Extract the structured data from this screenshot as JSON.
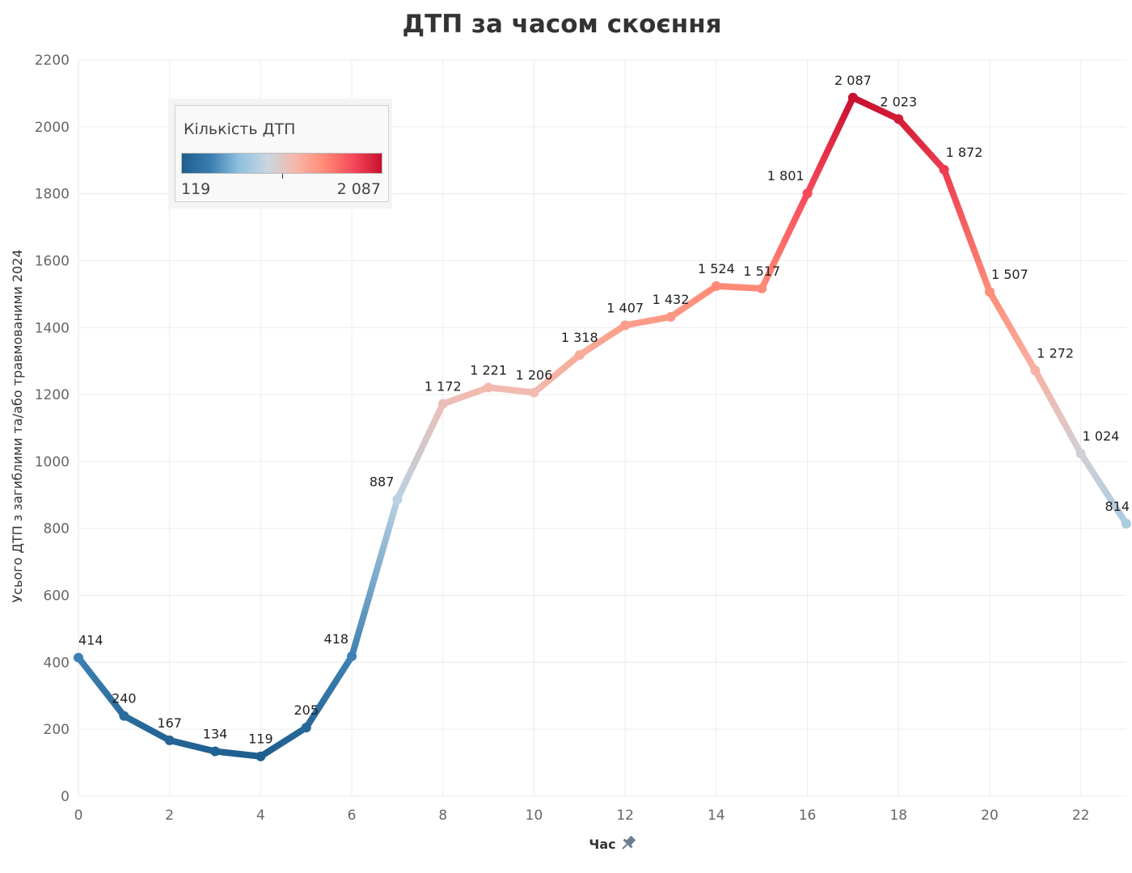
{
  "chart_data": {
    "type": "line",
    "title": "ДТП за часом скоєння",
    "xlabel": "Час",
    "ylabel": "Усього ДТП з загиблими та/або травмованими 2024",
    "x": [
      0,
      1,
      2,
      3,
      4,
      5,
      6,
      7,
      8,
      9,
      10,
      11,
      12,
      13,
      14,
      15,
      16,
      17,
      18,
      19,
      20,
      21,
      22,
      23
    ],
    "values": [
      414,
      240,
      167,
      134,
      119,
      205,
      418,
      887,
      1172,
      1221,
      1206,
      1318,
      1407,
      1432,
      1524,
      1517,
      1801,
      2087,
      2023,
      1872,
      1507,
      1272,
      1024,
      814
    ],
    "data_labels": [
      "414",
      "240",
      "167",
      "134",
      "119",
      "205",
      "418",
      "887",
      "1 172",
      "1 221",
      "1 206",
      "1 318",
      "1 407",
      "1 432",
      "1 524",
      "1 517",
      "1 801",
      "2 087",
      "2 023",
      "1 872",
      "1 507",
      "1 272",
      "1 024",
      "814"
    ],
    "x_ticks": [
      "0",
      "2",
      "4",
      "6",
      "8",
      "10",
      "12",
      "14",
      "16",
      "18",
      "20",
      "22"
    ],
    "y_ticks": [
      "0",
      "200",
      "400",
      "600",
      "800",
      "1000",
      "1200",
      "1400",
      "1600",
      "1800",
      "2000",
      "2200"
    ],
    "ylim": [
      0,
      2200
    ],
    "grid": true,
    "legend": {
      "title": "Кількість ДТП",
      "min_label": "119",
      "max_label": "2 087",
      "placement": "top-left",
      "colors": [
        "#1f5f8f",
        "#3a7db0",
        "#8fc0df",
        "#c8d7e2",
        "#f7b7a8",
        "#ff8a75",
        "#f6495b",
        "#c8102e"
      ]
    }
  }
}
